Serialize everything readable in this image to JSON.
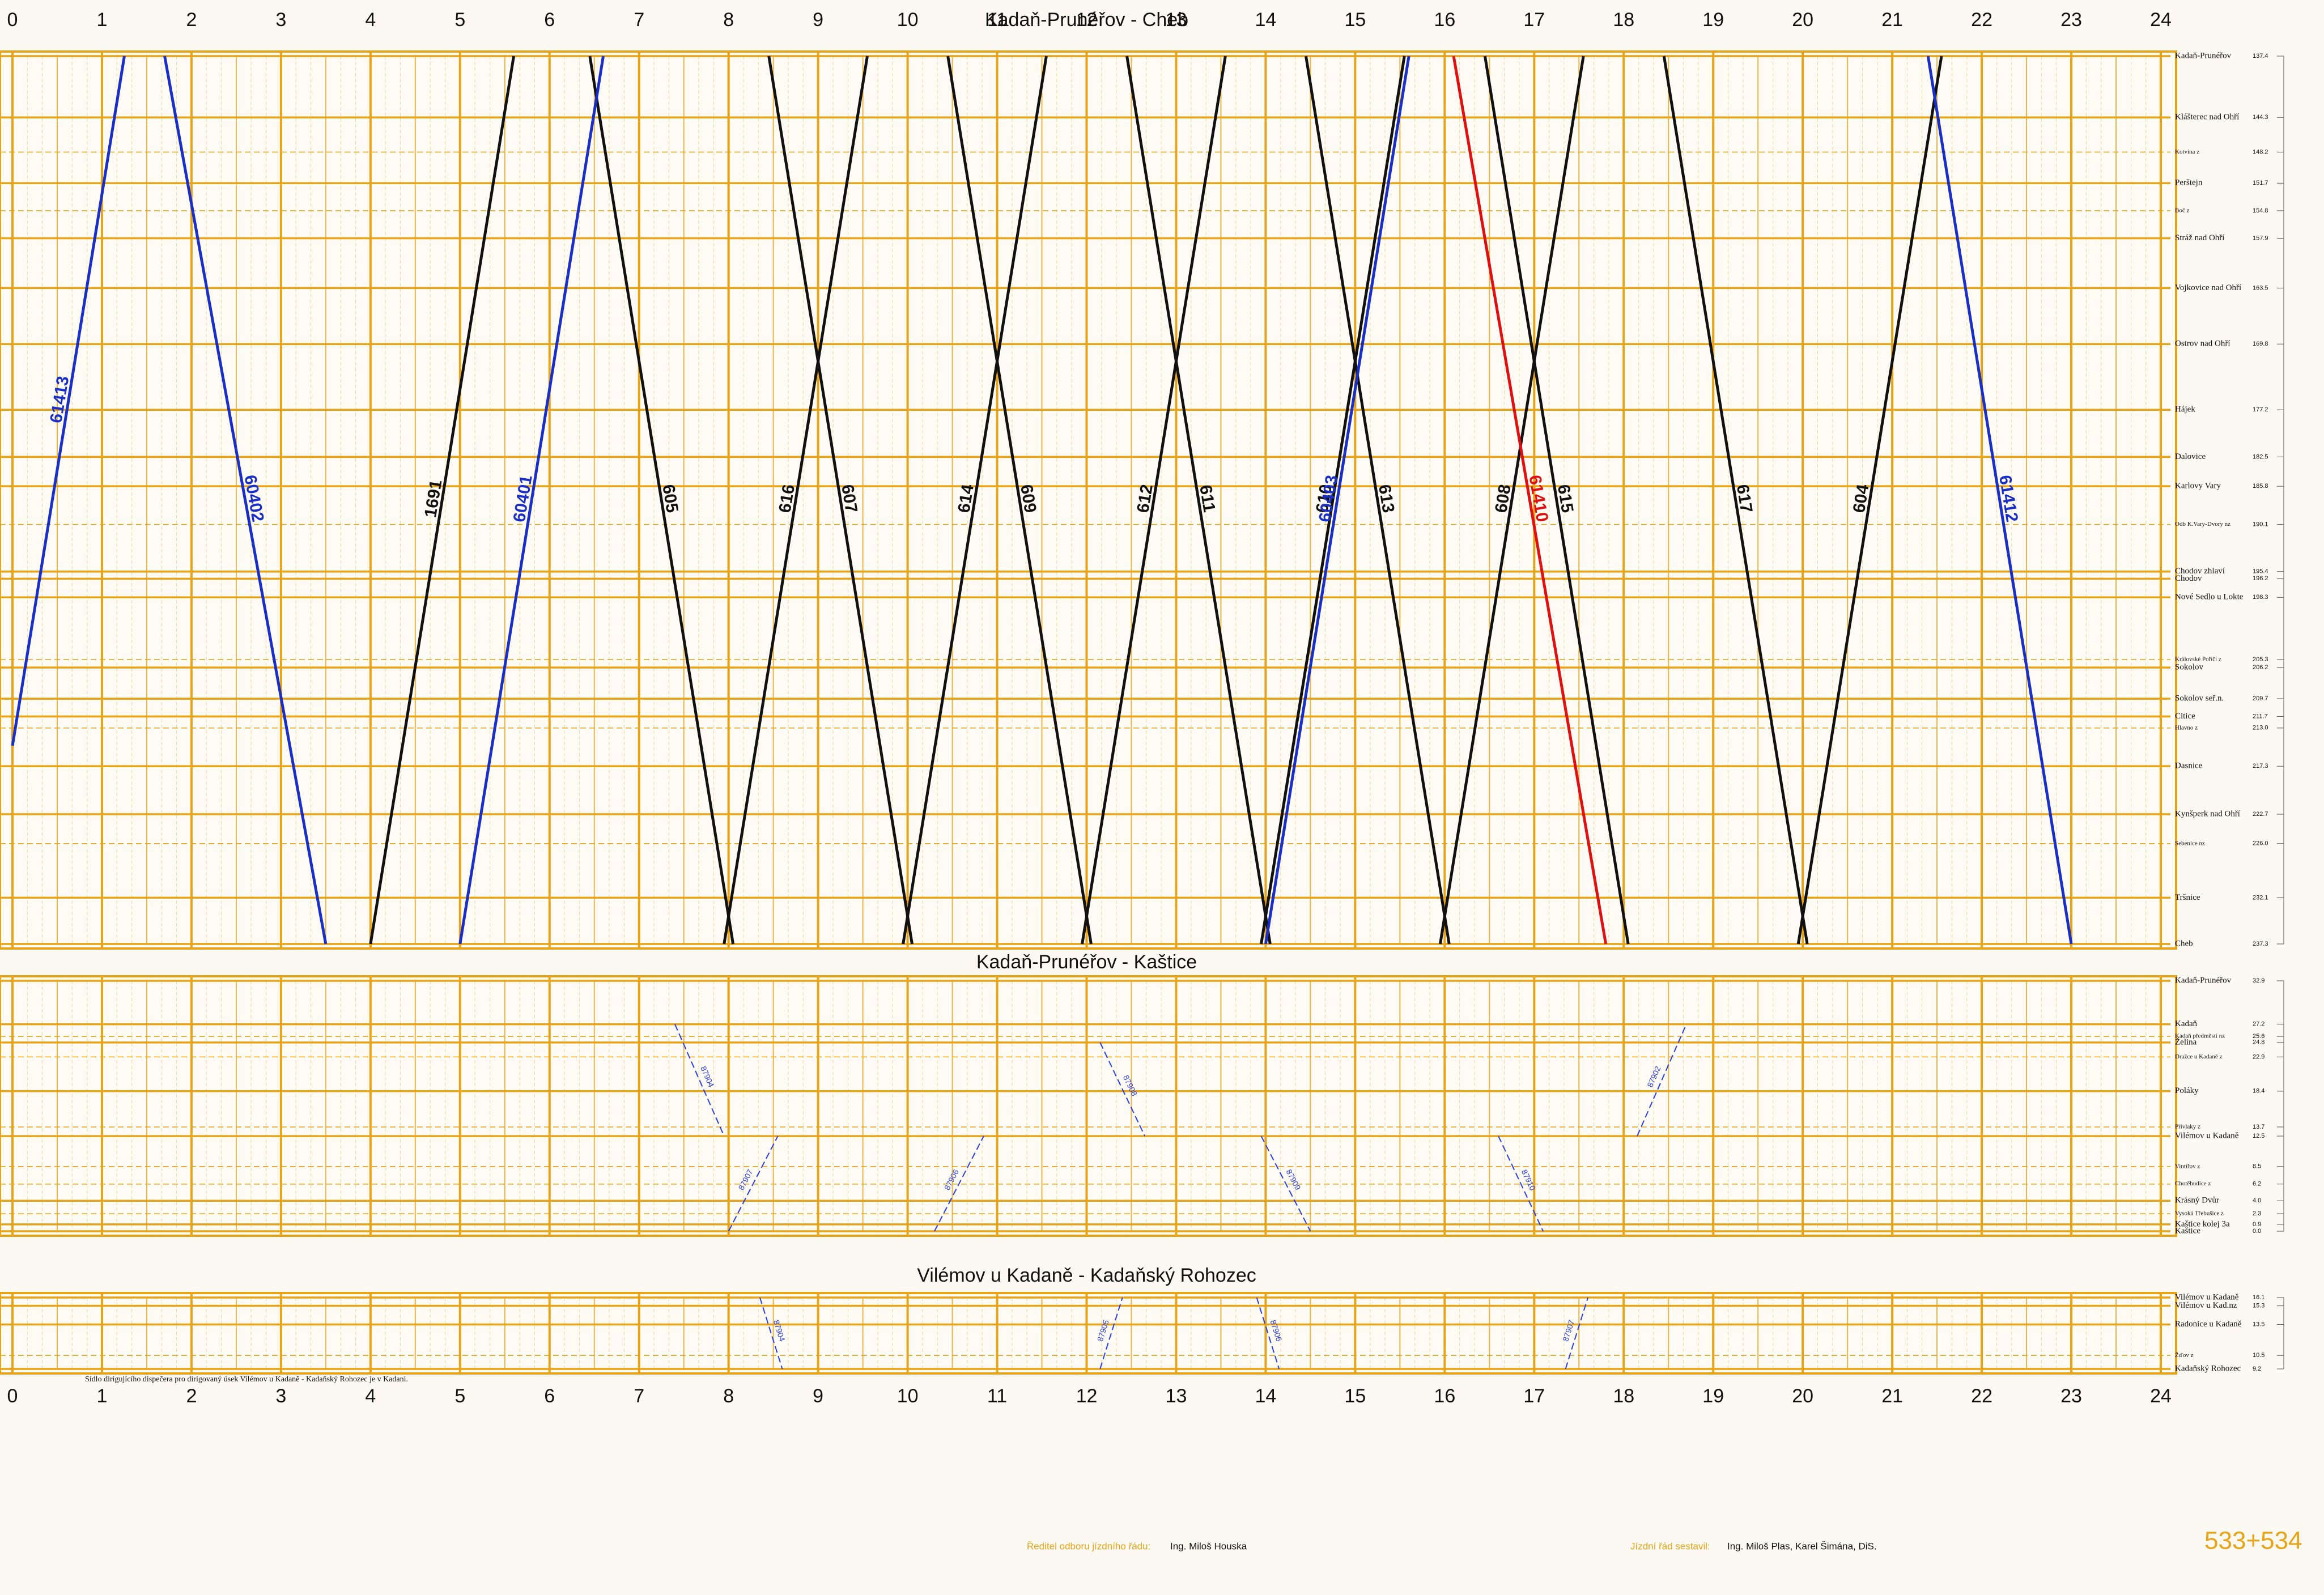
{
  "hours": [
    0,
    1,
    2,
    3,
    4,
    5,
    6,
    7,
    8,
    9,
    10,
    11,
    12,
    13,
    14,
    15,
    16,
    17,
    18,
    19,
    20,
    21,
    22,
    23,
    24
  ],
  "panels": [
    {
      "title": "Kadaň-Prunéřov - Cheb",
      "stations": [
        {
          "name": "Kadaň-Prunéřov",
          "km": "137.4"
        },
        {
          "name": "Klášterec nad Ohří",
          "km": "144.3"
        },
        {
          "name": "Kotvina z",
          "km": "148.2"
        },
        {
          "name": "Perštejn",
          "km": "151.7"
        },
        {
          "name": "Boč z",
          "km": "154.8"
        },
        {
          "name": "Stráž nad Ohří",
          "km": "157.9"
        },
        {
          "name": "Vojkovice nad Ohří",
          "km": "163.5"
        },
        {
          "name": "Ostrov nad Ohří",
          "km": "169.8"
        },
        {
          "name": "Hájek",
          "km": "177.2"
        },
        {
          "name": "Dalovice",
          "km": "182.5"
        },
        {
          "name": "Karlovy Vary",
          "km": "185.8"
        },
        {
          "name": "Odb K.Vary-Dvory nz",
          "km": "190.1"
        },
        {
          "name": "Chodov zhlaví",
          "km": "195.4"
        },
        {
          "name": "Chodov",
          "km": "196.2"
        },
        {
          "name": "Nové Sedlo u Lokte",
          "km": "198.3"
        },
        {
          "name": "Královské Poříčí z",
          "km": "205.3"
        },
        {
          "name": "Sokolov",
          "km": "206.2"
        },
        {
          "name": "Sokolov seř.n.",
          "km": "209.7"
        },
        {
          "name": "Citice",
          "km": "211.7"
        },
        {
          "name": "Hlavno z",
          "km": "213.0"
        },
        {
          "name": "Dasnice",
          "km": "217.3"
        },
        {
          "name": "Kynšperk nad Ohří",
          "km": "222.7"
        },
        {
          "name": "Sebenice nz",
          "km": "226.0"
        },
        {
          "name": "Tršnice",
          "km": "232.1"
        },
        {
          "name": "Cheb",
          "km": "237.3"
        }
      ],
      "trains": [
        {
          "number": "61413",
          "color": "#1a2fc8",
          "times": [
            0.0,
            1.25
          ],
          "km": [
            215.0,
            137.4
          ]
        },
        {
          "number": "60402",
          "color": "#1a2fc8",
          "times": [
            1.7,
            3.5
          ],
          "km": [
            137.4,
            237.3
          ]
        },
        {
          "number": "1691",
          "color": "#111111",
          "times": [
            4.0,
            5.6
          ],
          "km": [
            237.3,
            137.4
          ]
        },
        {
          "number": "605",
          "color": "#111111",
          "times": [
            6.45,
            8.05
          ],
          "km": [
            137.4,
            237.3
          ]
        },
        {
          "number": "616",
          "color": "#111111",
          "times": [
            7.95,
            9.55
          ],
          "km": [
            237.3,
            137.4
          ]
        },
        {
          "number": "607",
          "color": "#111111",
          "times": [
            8.45,
            10.05
          ],
          "km": [
            137.4,
            237.3
          ]
        },
        {
          "number": "614",
          "color": "#111111",
          "times": [
            9.95,
            11.55
          ],
          "km": [
            237.3,
            137.4
          ]
        },
        {
          "number": "609",
          "color": "#111111",
          "times": [
            10.45,
            12.05
          ],
          "km": [
            137.4,
            237.3
          ]
        },
        {
          "number": "612",
          "color": "#111111",
          "times": [
            11.95,
            13.55
          ],
          "km": [
            237.3,
            137.4
          ]
        },
        {
          "number": "611",
          "color": "#111111",
          "times": [
            12.45,
            14.05
          ],
          "km": [
            137.4,
            237.3
          ]
        },
        {
          "number": "610",
          "color": "#111111",
          "times": [
            13.95,
            15.55
          ],
          "km": [
            237.3,
            137.4
          ]
        },
        {
          "number": "613",
          "color": "#111111",
          "times": [
            14.45,
            16.05
          ],
          "km": [
            137.4,
            237.3
          ]
        },
        {
          "number": "608",
          "color": "#111111",
          "times": [
            15.95,
            17.55
          ],
          "km": [
            237.3,
            137.4
          ]
        },
        {
          "number": "61410",
          "color": "#e01010",
          "times": [
            16.1,
            17.8
          ],
          "km": [
            137.4,
            237.3
          ]
        },
        {
          "number": "615",
          "color": "#111111",
          "times": [
            16.45,
            18.05
          ],
          "km": [
            137.4,
            237.3
          ]
        },
        {
          "number": "617",
          "color": "#111111",
          "times": [
            18.45,
            20.05
          ],
          "km": [
            137.4,
            237.3
          ]
        },
        {
          "number": "604",
          "color": "#111111",
          "times": [
            19.95,
            21.55
          ],
          "km": [
            237.3,
            137.4
          ]
        },
        {
          "number": "61412",
          "color": "#1a2fc8",
          "times": [
            21.4,
            23.0
          ],
          "km": [
            137.4,
            237.3
          ]
        },
        {
          "number": "60401",
          "color": "#1a2fc8",
          "times": [
            5.0,
            6.6
          ],
          "km": [
            237.3,
            137.4
          ]
        },
        {
          "number": "60403",
          "color": "#1a2fc8",
          "times": [
            14.0,
            15.6
          ],
          "km": [
            237.3,
            137.4
          ]
        }
      ]
    },
    {
      "title": "Kadaň-Prunéřov - Kaštice",
      "stations": [
        {
          "name": "Kadaň-Prunéřov",
          "km": "32.9"
        },
        {
          "name": "Kadaň",
          "km": "27.2"
        },
        {
          "name": "Kadaň předměstí nz",
          "km": "25.6"
        },
        {
          "name": "Želina",
          "km": "24.8"
        },
        {
          "name": "Dražce u Kadaně z",
          "km": "22.9"
        },
        {
          "name": "Poláky",
          "km": "18.4"
        },
        {
          "name": "Přívlaky z",
          "km": "13.7"
        },
        {
          "name": "Vilémov u Kadaně",
          "km": "12.5"
        },
        {
          "name": "Vintířov z",
          "km": "8.5"
        },
        {
          "name": "Chotěbudice z",
          "km": "6.2"
        },
        {
          "name": "Krásný Dvůr",
          "km": "4.0"
        },
        {
          "name": "Vysoká Třebušice z",
          "km": "2.3"
        },
        {
          "name": "Kaštice kolej 3a",
          "km": "0.9"
        },
        {
          "name": "Kaštice",
          "km": "0.0"
        }
      ],
      "trains": [
        {
          "number": "87904",
          "color": "#2a3fe0",
          "times": [
            7.4,
            7.95
          ],
          "km": [
            27.2,
            12.5
          ]
        },
        {
          "number": "87907",
          "color": "#2a3fe0",
          "times": [
            8.0,
            8.55
          ],
          "km": [
            0.0,
            12.5
          ]
        },
        {
          "number": "87906",
          "color": "#2a3fe0",
          "times": [
            10.3,
            10.85
          ],
          "km": [
            0.0,
            12.5
          ]
        },
        {
          "number": "87908",
          "color": "#2a3fe0",
          "times": [
            12.15,
            12.65
          ],
          "km": [
            24.8,
            12.5
          ]
        },
        {
          "number": "87909",
          "color": "#2a3fe0",
          "times": [
            13.95,
            14.5
          ],
          "km": [
            12.5,
            0.0
          ]
        },
        {
          "number": "87910",
          "color": "#2a3fe0",
          "times": [
            16.6,
            17.1
          ],
          "km": [
            12.5,
            0.0
          ]
        },
        {
          "number": "87902",
          "color": "#2a3fe0",
          "times": [
            18.15,
            18.7
          ],
          "km": [
            12.5,
            27.2
          ]
        }
      ]
    },
    {
      "title": "Vilémov u Kadaně - Kadaňský Rohozec",
      "stations": [
        {
          "name": "Vilémov u Kadaně",
          "km": "16.1"
        },
        {
          "name": "Vilémov u Kad.nz",
          "km": "15.3"
        },
        {
          "name": "Radonice u Kadaně",
          "km": "13.5"
        },
        {
          "name": "Žďov z",
          "km": "10.5"
        },
        {
          "name": "Kadaňský Rohozec",
          "km": "9.2"
        }
      ],
      "trains": [
        {
          "number": "87904",
          "color": "#2a3fe0",
          "times": [
            8.35,
            8.6
          ],
          "km": [
            16.1,
            9.2
          ]
        },
        {
          "number": "87905",
          "color": "#2a3fe0",
          "times": [
            12.15,
            12.4
          ],
          "km": [
            9.2,
            16.1
          ]
        },
        {
          "number": "87906",
          "color": "#2a3fe0",
          "times": [
            13.9,
            14.15
          ],
          "km": [
            16.1,
            9.2
          ]
        },
        {
          "number": "87907",
          "color": "#2a3fe0",
          "times": [
            17.35,
            17.6
          ],
          "km": [
            9.2,
            16.1
          ]
        }
      ]
    }
  ],
  "note": "Sídlo dirigujícího dispečera pro dirigovaný úsek Vilémov u Kadaně - Kadaňský Rohozec je v Kadani.",
  "footer": {
    "director_label": "Ředitel odboru jízdního řádu:",
    "director": "Ing. Miloš Houska",
    "author_label": "Jízdní řád sestavil:",
    "authors": "Ing. Miloš Plas, Karel Šimána, DiS.",
    "lines": "533+534"
  }
}
